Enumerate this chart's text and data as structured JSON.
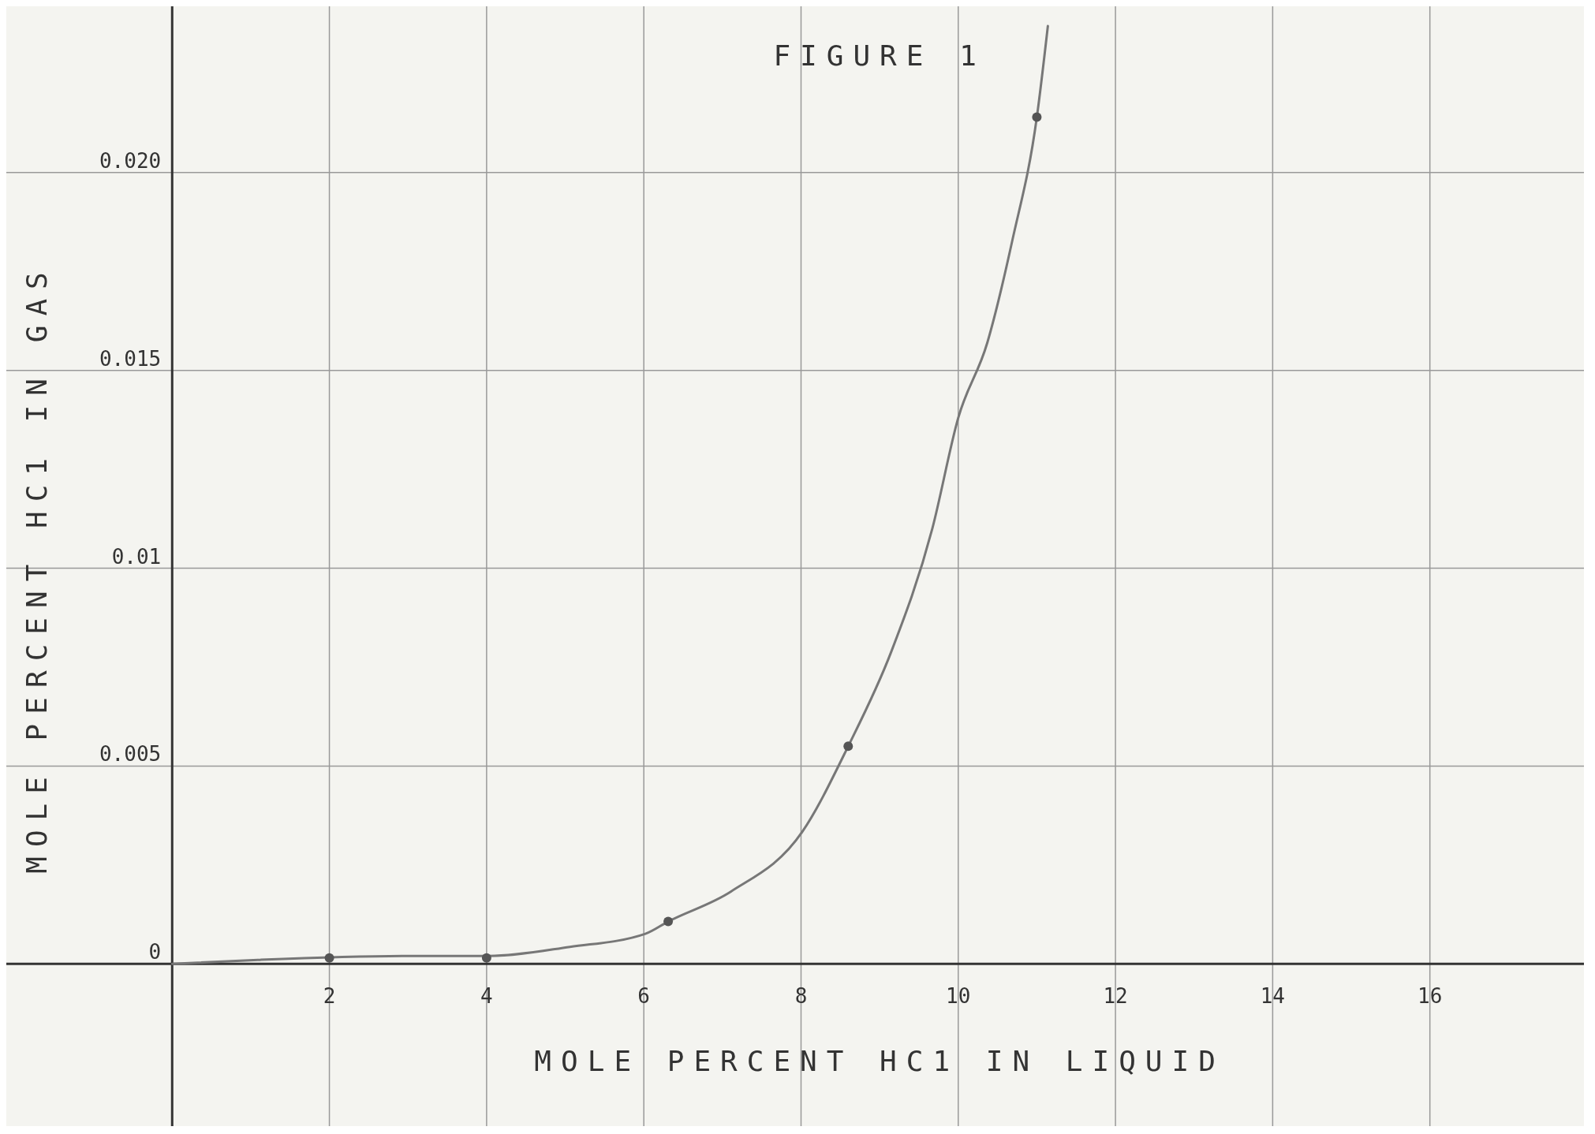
{
  "chart_data": {
    "type": "line",
    "title": "FIGURE 1",
    "xlabel": "MOLE PERCENT HC1 IN LIQUID",
    "ylabel": "MOLE PERCENT HC1 IN GAS",
    "xlim": [
      -2.11,
      17.96
    ],
    "ylim": [
      -0.0041,
      0.0242
    ],
    "xticks": [
      2,
      4,
      6,
      8,
      10,
      12,
      14,
      16
    ],
    "yticks": [
      0,
      0.005,
      0.01,
      0.015,
      {
        "value": 0.02,
        "label": "0.020"
      }
    ],
    "grid": true,
    "series": [
      {
        "color": "#777777",
        "marker": "none",
        "x": [
          0,
          1.09,
          3.01,
          4.03,
          5.06,
          6.02,
          6.31,
          7.11,
          8.02,
          8.6,
          9.15,
          9.67,
          10.0,
          10.37,
          10.69,
          11.0,
          11.14
        ],
        "values": [
          0,
          0.0001,
          0.0002,
          0.0002,
          0.00043,
          0.00076,
          0.00107,
          0.00183,
          0.00335,
          0.0055,
          0.0079,
          0.011,
          0.0138,
          0.0157,
          0.0183,
          0.0214,
          0.0237
        ]
      },
      {
        "type": "scatter",
        "color": "#555555",
        "marker": "circle",
        "x": [
          2,
          4,
          6.31,
          8.6,
          11.0
        ],
        "values": [
          0.00015,
          0.00015,
          0.00107,
          0.0055,
          0.0214
        ]
      }
    ]
  }
}
